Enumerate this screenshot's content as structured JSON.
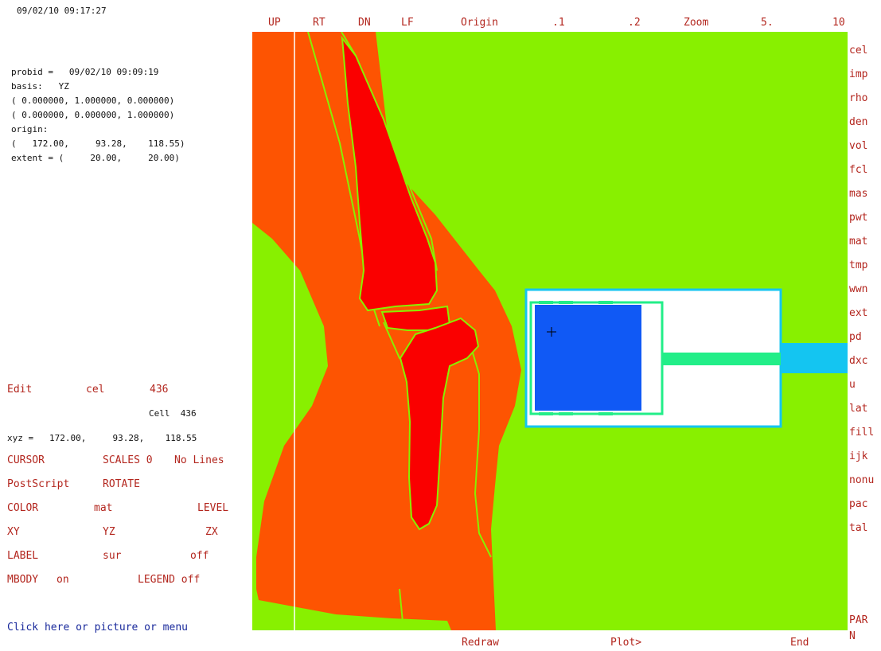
{
  "timestamp": "09/02/10 09:17:27",
  "info": {
    "probid": "probid =   09/02/10 09:09:19",
    "basis": "basis:   YZ",
    "basis_v1": "( 0.000000, 1.000000, 0.000000)",
    "basis_v2": "( 0.000000, 0.000000, 1.000000)",
    "origin_label": "origin:",
    "origin_value": "(   172.00,     93.28,    118.55)",
    "extent": "extent = (     20.00,     20.00)"
  },
  "top_menu": [
    "UP",
    "RT",
    "DN",
    "LF",
    "Origin",
    ".1",
    ".2",
    "Zoom",
    "5.",
    "10"
  ],
  "right_menu": [
    "cel",
    "imp",
    "rho",
    "den",
    "vol",
    "fcl",
    "mas",
    "pwt",
    "mat",
    "tmp",
    "wwn",
    "ext",
    "pd",
    "dxc",
    "u",
    "lat",
    "fill",
    "ijk",
    "nonu",
    "pac",
    "tal"
  ],
  "right_menu_bottom": [
    "PAR",
    "N"
  ],
  "bottom_menu": {
    "redraw": "Redraw",
    "plot": "Plot>",
    "end": "End"
  },
  "edit": {
    "label": "Edit",
    "field": "cel",
    "value": "436"
  },
  "cell_label": "Cell  436",
  "xyz": "xyz =   172.00,     93.28,    118.55",
  "left_menu": {
    "cursor": "CURSOR",
    "scales": "SCALES 0",
    "no_lines": "No Lines",
    "postscript": "PostScript",
    "rotate": "ROTATE",
    "color": "COLOR",
    "mat": "mat",
    "level": "LEVEL",
    "xy": "XY",
    "yz": "YZ",
    "zx": "ZX",
    "label": "LABEL",
    "sur": "sur",
    "off": "off",
    "mbody": "MBODY",
    "on": "on",
    "legend": "LEGEND off"
  },
  "prompt": "Click here or picture or menu",
  "colors": {
    "background_green": "#88f000",
    "tissue_orange": "#fd5402",
    "bone_red": "#fa0000",
    "detector_blue": "#1059f5",
    "beam_cyan": "#14c5f1",
    "mint": "#22ee88"
  }
}
